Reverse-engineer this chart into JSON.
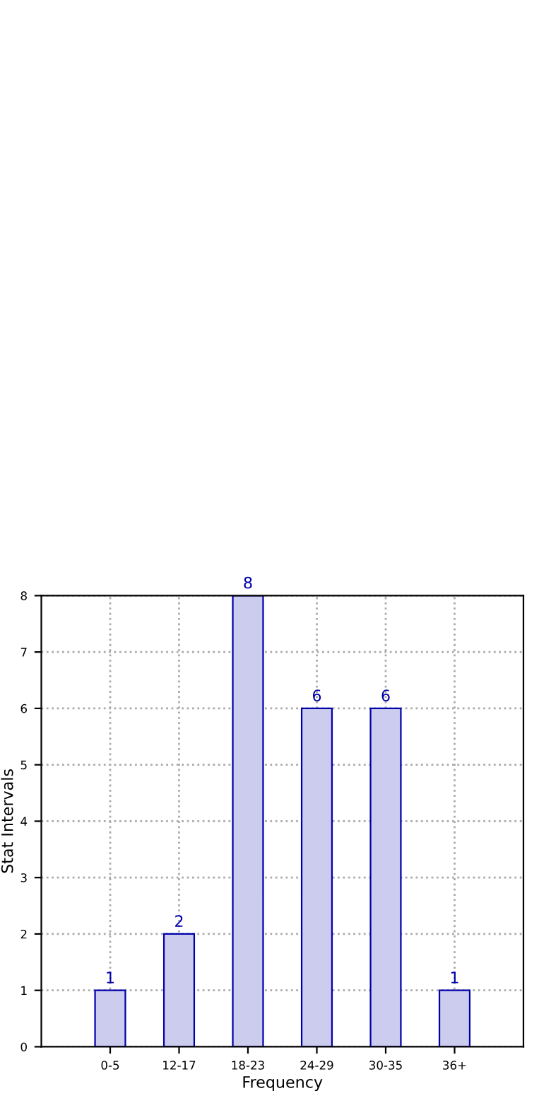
{
  "chart_data": {
    "type": "bar",
    "xlabel": "Frequency",
    "ylabel": "Stat Intervals",
    "categories": [
      "0-5",
      "12-17",
      "18-23",
      "24-29",
      "30-35",
      "36+"
    ],
    "values": [
      1,
      2,
      8,
      6,
      6,
      1
    ],
    "color": "#ccccee",
    "ylim": [
      0,
      8
    ],
    "yticks": [
      0,
      1,
      2,
      3,
      4,
      5,
      6,
      7,
      8
    ],
    "grid": true,
    "data_labels": true
  }
}
